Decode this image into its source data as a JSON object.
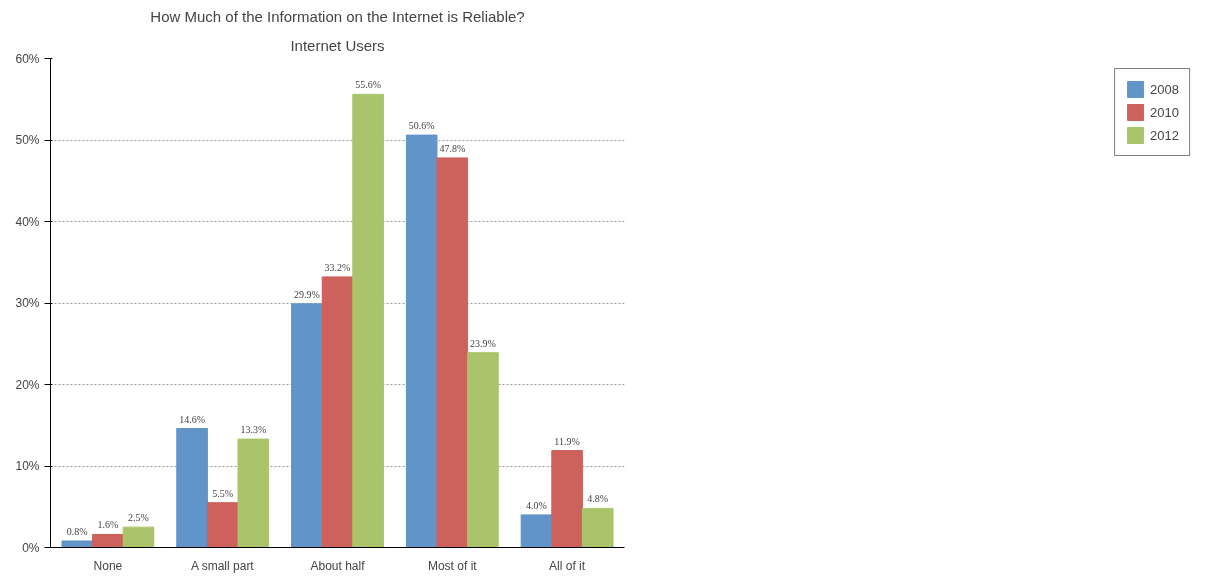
{
  "chart_data": {
    "type": "bar",
    "title": "How Much of the Information on the Internet is Reliable?",
    "subtitle": "Internet Users",
    "categories": [
      "None",
      "A small part",
      "About half",
      "Most of it",
      "All of it"
    ],
    "series": [
      {
        "name": "2008",
        "color": "#6194c9",
        "values": [
          0.8,
          14.6,
          29.9,
          50.6,
          4.0
        ],
        "value_labels": [
          "0.8%",
          "14.6%",
          "29.9%",
          "50.6%",
          "4.0%"
        ]
      },
      {
        "name": "2010",
        "color": "#cd615b",
        "values": [
          1.6,
          5.5,
          33.2,
          47.8,
          11.9
        ],
        "value_labels": [
          "1.6%",
          "5.5%",
          "33.2%",
          "47.8%",
          "11.9%"
        ]
      },
      {
        "name": "2012",
        "color": "#a9c46a",
        "values": [
          2.5,
          13.3,
          55.6,
          23.9,
          4.8
        ],
        "value_labels": [
          "2.5%",
          "13.3%",
          "55.6%",
          "23.9%",
          "4.8%"
        ]
      }
    ],
    "ylim": [
      0,
      60
    ],
    "yticks": [
      {
        "value": 0,
        "label": "0%"
      },
      {
        "value": 10,
        "label": "10%"
      },
      {
        "value": 20,
        "label": "20%"
      },
      {
        "value": 30,
        "label": "30%"
      },
      {
        "value": 40,
        "label": "40%"
      },
      {
        "value": 50,
        "label": "50%"
      },
      {
        "value": 60,
        "label": "60%"
      }
    ],
    "grid": "y",
    "legend": "right"
  }
}
